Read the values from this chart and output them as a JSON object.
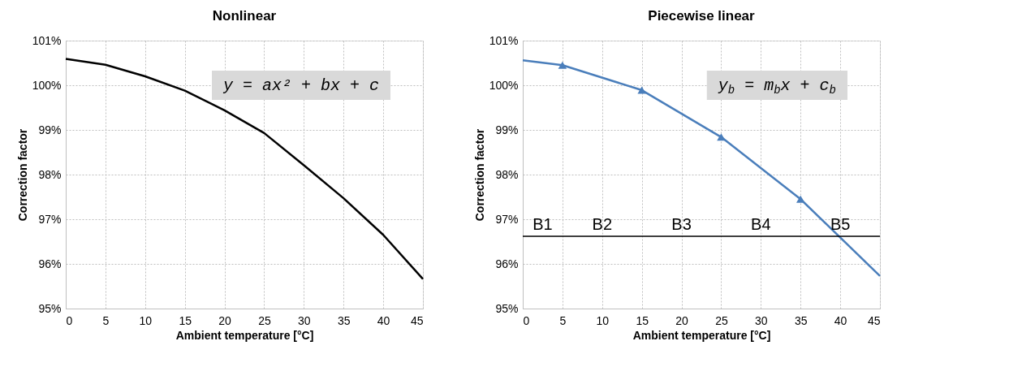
{
  "chart_data": [
    {
      "type": "line",
      "title": "Nonlinear",
      "xlabel": "Ambient temperature [°C]",
      "ylabel": "Correction factor",
      "x": [
        0,
        5,
        10,
        15,
        20,
        25,
        30,
        35,
        40,
        45
      ],
      "series": [
        {
          "color": "#000000",
          "values": [
            100.59,
            100.46,
            100.2,
            99.88,
            99.44,
            98.93,
            98.21,
            97.47,
            96.65,
            95.66
          ]
        }
      ],
      "xlim": [
        0,
        45
      ],
      "xticks": [
        0,
        5,
        10,
        15,
        20,
        25,
        30,
        35,
        40,
        45
      ],
      "ylim": [
        95,
        101
      ],
      "yticks": [
        {
          "value": 95,
          "label": "95%"
        },
        {
          "value": 96,
          "label": "96%"
        },
        {
          "value": 97,
          "label": "97%"
        },
        {
          "value": 98,
          "label": "98%"
        },
        {
          "value": 99,
          "label": "99%"
        },
        {
          "value": 100,
          "label": "100%"
        },
        {
          "value": 101,
          "label": "101%"
        }
      ],
      "grid": true,
      "legend": false,
      "annotations": [
        "y = ax² + bx + c"
      ]
    },
    {
      "type": "line",
      "title": "Piecewise linear",
      "xlabel": "Ambient temperature [°C]",
      "ylabel": "Correction factor",
      "series": [
        {
          "type": "line",
          "color": "#4a7ebb",
          "marker": "none",
          "x": [
            0,
            5,
            15,
            25,
            35,
            45
          ],
          "values": [
            100.56,
            100.45,
            99.89,
            98.84,
            97.45,
            95.73
          ]
        },
        {
          "type": "scatter",
          "color": "#4a7ebb",
          "marker": "triangle",
          "x": [
            5,
            15,
            25,
            35
          ],
          "values": [
            100.45,
            99.89,
            98.84,
            97.45
          ]
        }
      ],
      "xlim": [
        0,
        45
      ],
      "xticks": [
        0,
        5,
        10,
        15,
        20,
        25,
        30,
        35,
        40,
        45
      ],
      "ylim": [
        95,
        101
      ],
      "yticks": [
        {
          "value": 95,
          "label": "95%"
        },
        {
          "value": 96,
          "label": "96%"
        },
        {
          "value": 97,
          "label": "97%"
        },
        {
          "value": 98,
          "label": "98%"
        },
        {
          "value": 99,
          "label": "99%"
        },
        {
          "value": 100,
          "label": "100%"
        },
        {
          "value": 101,
          "label": "101%"
        }
      ],
      "grid": true,
      "legend": false,
      "ref_lines": [
        {
          "axis": "y",
          "value": 96.62,
          "color": "#000000",
          "line_style": "solid"
        }
      ],
      "annotations": [
        "y$_{b}$ = m$_{b}$x + c$_{b}$",
        {
          "text": "B1",
          "x": 2.5,
          "y": 96.62
        },
        {
          "text": "B2",
          "x": 10,
          "y": 96.62
        },
        {
          "text": "B3",
          "x": 20,
          "y": 96.62
        },
        {
          "text": "B4",
          "x": 30,
          "y": 96.62
        },
        {
          "text": "B5",
          "x": 40,
          "y": 96.62
        }
      ]
    }
  ]
}
